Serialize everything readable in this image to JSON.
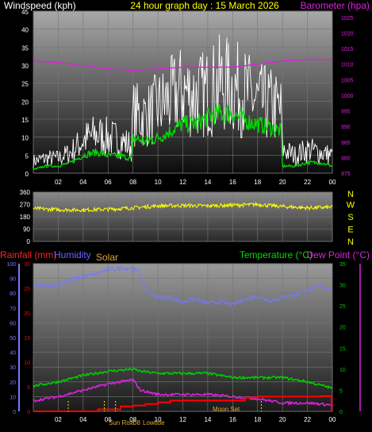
{
  "title": "24 hour graph day : 15 March 2026",
  "colors": {
    "wind": "#ffffff",
    "wind_avg": "#00dd00",
    "barometer": "#dd22dd",
    "direction": "#ffff00",
    "rain": "#ff0000",
    "humidity": "#7777ff",
    "solar": "#ddaa33",
    "temperature": "#00cc00",
    "dewpoint": "#dd22dd",
    "axis_text": "#ffffff",
    "grid": "#777777"
  },
  "chart_data": [
    {
      "type": "line",
      "ylabel_left": "Windspeed (kph)",
      "ylabel_right": "Barometer (hpa)",
      "x_ticks": [
        "02",
        "04",
        "06",
        "08",
        "10",
        "12",
        "14",
        "16",
        "18",
        "20",
        "22",
        "00"
      ],
      "y_ticks_left": [
        0,
        5,
        10,
        15,
        20,
        25,
        30,
        35,
        40,
        45
      ],
      "ylim_left": [
        0,
        45
      ],
      "y_ticks_right": [
        975,
        980,
        985,
        990,
        995,
        1000,
        1005,
        1010,
        1015,
        1020,
        1025
      ],
      "ylim_right": [
        975,
        1027
      ],
      "grid": true,
      "series": [
        {
          "name": "Windspeed (kph)",
          "axis": "left",
          "x": [
            0,
            1,
            2,
            3,
            4,
            5,
            6,
            7,
            7.9,
            8,
            9,
            10,
            11,
            12,
            13,
            14,
            15,
            16,
            17,
            18,
            19,
            19.9,
            20,
            21,
            22,
            23,
            24
          ],
          "values": [
            4,
            5,
            5,
            7,
            11,
            13,
            12,
            11,
            9,
            20,
            19,
            22,
            25,
            28,
            26,
            27,
            30,
            29,
            27,
            24,
            23,
            21,
            8,
            6,
            8,
            7,
            6
          ]
        },
        {
          "name": "Wind average",
          "axis": "left",
          "x": [
            0,
            1,
            2,
            3,
            4,
            5,
            6,
            7,
            7.9,
            8,
            9,
            10,
            11,
            12,
            13,
            14,
            15,
            16,
            17,
            18,
            19,
            19.9,
            20,
            21,
            22,
            23,
            24
          ],
          "values": [
            1,
            2,
            2,
            3,
            5,
            6,
            5,
            5,
            4,
            10,
            9,
            10,
            12,
            14,
            14,
            16,
            17,
            17,
            15,
            14,
            13,
            12,
            2,
            2,
            3,
            3,
            2
          ]
        },
        {
          "name": "Barometer (hpa)",
          "axis": "right",
          "x": [
            0,
            2,
            4,
            6,
            8,
            10,
            12,
            14,
            16,
            18,
            20,
            22,
            24
          ],
          "values": [
            1011,
            1010.5,
            1009.5,
            1008.5,
            1008,
            1008.5,
            1009,
            1009,
            1009,
            1010,
            1011,
            1011.5,
            1011.5
          ]
        }
      ]
    },
    {
      "type": "line",
      "right_labels": [
        "N",
        "W",
        "S",
        "E",
        "N"
      ],
      "y_ticks": [
        0,
        90,
        180,
        270,
        360
      ],
      "ylim": [
        0,
        360
      ],
      "grid": true,
      "series": [
        {
          "name": "Wind direction",
          "axis": "left",
          "x": [
            0,
            2,
            4,
            6,
            8,
            10,
            12,
            14,
            16,
            18,
            20,
            22,
            24
          ],
          "values": [
            240,
            232,
            230,
            235,
            245,
            260,
            262,
            260,
            265,
            270,
            255,
            245,
            250
          ]
        }
      ]
    },
    {
      "type": "line",
      "title_labels": [
        "Rainfall (mm)",
        "Humidity",
        "Solar",
        "Temperature (°C)",
        "Dew Point (°C)"
      ],
      "x_ticks": [
        "02",
        "04",
        "06",
        "08",
        "10",
        "12",
        "14",
        "16",
        "18",
        "20",
        "22",
        "00"
      ],
      "y_ticks_humidity": [
        0,
        10,
        20,
        30,
        40,
        50,
        60,
        70,
        80,
        90,
        100
      ],
      "ylim_humidity": [
        0,
        100
      ],
      "y_ticks_rain": [
        0,
        5,
        10,
        15,
        20,
        25,
        30
      ],
      "ylim_rain": [
        0,
        30
      ],
      "y_ticks_temp": [
        0,
        5,
        10,
        15,
        20,
        25,
        30,
        35
      ],
      "ylim_temp": [
        0,
        35
      ],
      "annotations": [
        "Sun Rise",
        "08",
        "Lowtide",
        "Moon Set"
      ],
      "grid": true,
      "series": [
        {
          "name": "Humidity",
          "axis": "humidity",
          "x": [
            0,
            1,
            2,
            3,
            4,
            5,
            6,
            7,
            8,
            8.6,
            9,
            10,
            11,
            12,
            13,
            14,
            15,
            16,
            17,
            18,
            19,
            20,
            21,
            22,
            23,
            24
          ],
          "values": [
            85,
            85,
            86,
            89,
            91,
            93,
            96,
            97,
            97,
            93,
            82,
            77,
            77,
            74,
            76,
            73,
            74,
            72,
            76,
            78,
            75,
            77,
            79,
            82,
            84,
            83
          ]
        },
        {
          "name": "Temperature (°C)",
          "axis": "temp",
          "x": [
            0,
            2,
            4,
            6,
            8,
            8.6,
            10,
            12,
            14,
            16,
            18,
            20,
            22,
            24
          ],
          "values": [
            6,
            7,
            8.5,
            9.5,
            10,
            9.5,
            9,
            9,
            9,
            8,
            8,
            8,
            7,
            5.5
          ]
        },
        {
          "name": "Dew Point (°C)",
          "axis": "temp",
          "x": [
            0,
            2,
            4,
            6,
            8,
            8.6,
            10,
            12,
            14,
            16,
            18,
            20,
            22,
            24
          ],
          "values": [
            2.5,
            3.5,
            5,
            6.5,
            7.5,
            5,
            4,
            4,
            4,
            3.5,
            3,
            2,
            2,
            1.5
          ]
        },
        {
          "name": "Rainfall (mm)",
          "axis": "rain",
          "x": [
            0,
            5,
            5.2,
            7,
            8,
            9,
            10,
            11,
            16,
            17,
            18,
            22,
            23,
            24
          ],
          "values": [
            0,
            0,
            0.4,
            1,
            1.2,
            1.5,
            1.8,
            2.2,
            2.2,
            2.8,
            3.0,
            3.0,
            3.1,
            3.1
          ]
        }
      ]
    }
  ]
}
